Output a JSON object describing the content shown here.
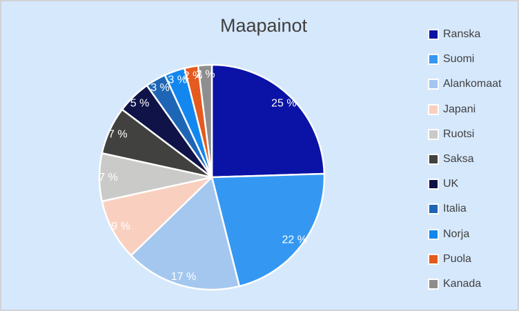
{
  "chart_data": {
    "type": "pie",
    "title": "Maapainot",
    "legend_position": "right",
    "categories": [
      "Ranska",
      "Suomi",
      "Alankomaat",
      "Japani",
      "Ruotsi",
      "Saksa",
      "UK",
      "Italia",
      "Norja",
      "Puola",
      "Kanada"
    ],
    "values": [
      25,
      22,
      17,
      9,
      7,
      7,
      5,
      3,
      3,
      2,
      2
    ],
    "labels": [
      "25 %",
      "22 %",
      "17 %",
      "9 %",
      "7 %",
      "7 %",
      "5 %",
      "3 %",
      "3 %",
      "2 %",
      "2 %"
    ],
    "unit": "%",
    "colors": [
      "#0A13A5",
      "#3498F3",
      "#A3C7EF",
      "#F9D0C0",
      "#CACAC8",
      "#414140",
      "#101348",
      "#1E66B5",
      "#1287F0",
      "#E55A1E",
      "#8E8E8E"
    ],
    "slice_label_position": "inside-end",
    "grid": false
  },
  "styles": {
    "background": "#D6E8FC",
    "frame_border": "#D1D2D5",
    "title_color": "#404040",
    "legend_text_color": "#404040",
    "slice_label_color": "#FFFFFF",
    "slice_border_color": "#FFFFFF"
  }
}
